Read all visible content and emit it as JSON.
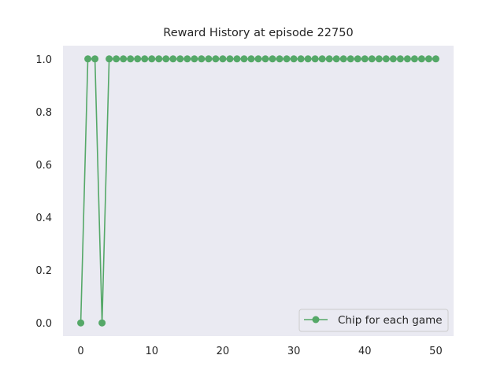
{
  "chart_data": {
    "type": "line",
    "title": "Reward History at episode 22750",
    "xlabel": "",
    "ylabel": "",
    "xlim": [
      -2.5,
      52.5
    ],
    "ylim": [
      -0.05,
      1.05
    ],
    "xticks": [
      0,
      10,
      20,
      30,
      40,
      50
    ],
    "yticks": [
      0.0,
      0.2,
      0.4,
      0.6,
      0.8,
      1.0
    ],
    "xtick_labels": [
      "0",
      "10",
      "20",
      "30",
      "40",
      "50"
    ],
    "ytick_labels": [
      "0.0",
      "0.2",
      "0.4",
      "0.6",
      "0.8",
      "1.0"
    ],
    "grid": false,
    "legend_position": "lower-right",
    "series": [
      {
        "name": "Chip for each game",
        "color": "#55a868",
        "marker": "circle",
        "x": [
          0,
          1,
          2,
          3,
          4,
          5,
          6,
          7,
          8,
          9,
          10,
          11,
          12,
          13,
          14,
          15,
          16,
          17,
          18,
          19,
          20,
          21,
          22,
          23,
          24,
          25,
          26,
          27,
          28,
          29,
          30,
          31,
          32,
          33,
          34,
          35,
          36,
          37,
          38,
          39,
          40,
          41,
          42,
          43,
          44,
          45,
          46,
          47,
          48,
          49,
          50
        ],
        "values": [
          0,
          1,
          1,
          0,
          1,
          1,
          1,
          1,
          1,
          1,
          1,
          1,
          1,
          1,
          1,
          1,
          1,
          1,
          1,
          1,
          1,
          1,
          1,
          1,
          1,
          1,
          1,
          1,
          1,
          1,
          1,
          1,
          1,
          1,
          1,
          1,
          1,
          1,
          1,
          1,
          1,
          1,
          1,
          1,
          1,
          1,
          1,
          1,
          1,
          1,
          1
        ]
      }
    ]
  },
  "style": {
    "plot_background": "#eaeaf2",
    "text_color": "#262626"
  }
}
